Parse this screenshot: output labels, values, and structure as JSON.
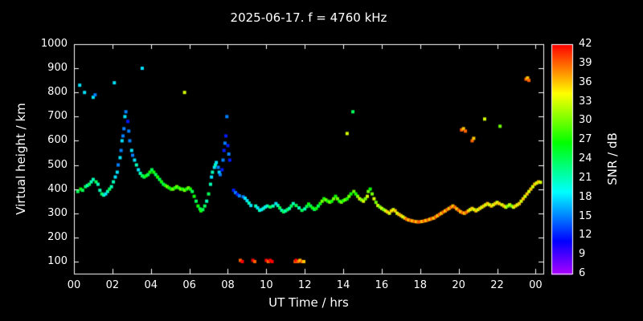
{
  "chart_data": {
    "type": "scatter",
    "title": "2025-06-17. f = 4760 kHz",
    "xlabel": "UT Time / hrs",
    "ylabel": "Virtual height / km",
    "colorbar_label": "SNR / dB",
    "xlim": [
      0,
      24.4
    ],
    "ylim": [
      50,
      1000
    ],
    "x_ticks": [
      0,
      2,
      4,
      6,
      8,
      10,
      12,
      14,
      16,
      18,
      20,
      22,
      24
    ],
    "x_tick_labels": [
      "00",
      "02",
      "04",
      "06",
      "08",
      "10",
      "12",
      "14",
      "16",
      "18",
      "20",
      "22",
      "00"
    ],
    "y_ticks": [
      100,
      200,
      300,
      400,
      500,
      600,
      700,
      800,
      900,
      1000
    ],
    "colorbar": {
      "min": 6,
      "max": 42,
      "ticks": [
        6,
        9,
        12,
        15,
        18,
        21,
        24,
        27,
        30,
        33,
        36,
        39,
        42
      ]
    },
    "background": "#000000",
    "frame_color": "#ffffff",
    "grid": false,
    "marker": "square",
    "points": [
      [
        0.2,
        390,
        24
      ],
      [
        0.3,
        830,
        18
      ],
      [
        0.35,
        400,
        27
      ],
      [
        0.45,
        395,
        24
      ],
      [
        0.55,
        800,
        18
      ],
      [
        0.6,
        410,
        24
      ],
      [
        0.7,
        415,
        21
      ],
      [
        0.8,
        420,
        24
      ],
      [
        0.9,
        430,
        21
      ],
      [
        1.0,
        780,
        18
      ],
      [
        1.0,
        440,
        21
      ],
      [
        1.1,
        790,
        15
      ],
      [
        1.15,
        430,
        24
      ],
      [
        1.25,
        420,
        21
      ],
      [
        1.35,
        395,
        21
      ],
      [
        1.45,
        380,
        24
      ],
      [
        1.55,
        375,
        21
      ],
      [
        1.65,
        380,
        18
      ],
      [
        1.75,
        390,
        21
      ],
      [
        1.85,
        400,
        24
      ],
      [
        1.95,
        410,
        21
      ],
      [
        2.05,
        430,
        21
      ],
      [
        2.1,
        840,
        18
      ],
      [
        2.15,
        450,
        18
      ],
      [
        2.25,
        470,
        18
      ],
      [
        2.3,
        500,
        15
      ],
      [
        2.4,
        530,
        18
      ],
      [
        2.45,
        560,
        15
      ],
      [
        2.5,
        600,
        18
      ],
      [
        2.55,
        620,
        15
      ],
      [
        2.6,
        650,
        15
      ],
      [
        2.65,
        700,
        18
      ],
      [
        2.7,
        720,
        15
      ],
      [
        2.8,
        680,
        12
      ],
      [
        2.85,
        640,
        15
      ],
      [
        2.9,
        600,
        15
      ],
      [
        3.0,
        560,
        18
      ],
      [
        3.05,
        540,
        15
      ],
      [
        3.15,
        520,
        18
      ],
      [
        3.25,
        500,
        21
      ],
      [
        3.35,
        480,
        18
      ],
      [
        3.45,
        465,
        21
      ],
      [
        3.55,
        900,
        18
      ],
      [
        3.55,
        455,
        24
      ],
      [
        3.65,
        450,
        24
      ],
      [
        3.75,
        455,
        27
      ],
      [
        3.85,
        460,
        24
      ],
      [
        3.95,
        470,
        27
      ],
      [
        4.05,
        480,
        24
      ],
      [
        4.15,
        470,
        27
      ],
      [
        4.25,
        460,
        24
      ],
      [
        4.35,
        450,
        27
      ],
      [
        4.45,
        440,
        24
      ],
      [
        4.55,
        430,
        27
      ],
      [
        4.65,
        420,
        24
      ],
      [
        4.75,
        415,
        27
      ],
      [
        4.85,
        410,
        30
      ],
      [
        4.95,
        405,
        27
      ],
      [
        5.05,
        400,
        27
      ],
      [
        5.15,
        400,
        30
      ],
      [
        5.25,
        405,
        27
      ],
      [
        5.35,
        410,
        30
      ],
      [
        5.45,
        405,
        27
      ],
      [
        5.55,
        400,
        30
      ],
      [
        5.65,
        400,
        27
      ],
      [
        5.75,
        800,
        33
      ],
      [
        5.75,
        395,
        30
      ],
      [
        5.85,
        400,
        27
      ],
      [
        5.95,
        405,
        30
      ],
      [
        6.05,
        400,
        27
      ],
      [
        6.15,
        390,
        24
      ],
      [
        6.25,
        370,
        27
      ],
      [
        6.35,
        350,
        24
      ],
      [
        6.45,
        330,
        27
      ],
      [
        6.55,
        318,
        24
      ],
      [
        6.6,
        310,
        27
      ],
      [
        6.7,
        315,
        24
      ],
      [
        6.8,
        330,
        24
      ],
      [
        6.9,
        350,
        21
      ],
      [
        7.0,
        380,
        24
      ],
      [
        7.1,
        420,
        21
      ],
      [
        7.15,
        450,
        18
      ],
      [
        7.2,
        470,
        21
      ],
      [
        7.3,
        490,
        18
      ],
      [
        7.35,
        500,
        21
      ],
      [
        7.4,
        510,
        18
      ],
      [
        7.5,
        490,
        15
      ],
      [
        7.55,
        470,
        18
      ],
      [
        7.6,
        460,
        15
      ],
      [
        7.7,
        480,
        12
      ],
      [
        7.75,
        520,
        15
      ],
      [
        7.8,
        560,
        12
      ],
      [
        7.85,
        590,
        15
      ],
      [
        7.9,
        620,
        12
      ],
      [
        7.95,
        700,
        15
      ],
      [
        8.0,
        580,
        12
      ],
      [
        8.05,
        545,
        15
      ],
      [
        8.1,
        520,
        12
      ],
      [
        8.3,
        395,
        12
      ],
      [
        8.4,
        385,
        15
      ],
      [
        8.5,
        378,
        12
      ],
      [
        8.6,
        372,
        15
      ],
      [
        8.65,
        105,
        39
      ],
      [
        8.75,
        100,
        42
      ],
      [
        8.8,
        368,
        15
      ],
      [
        8.9,
        362,
        18
      ],
      [
        9.0,
        352,
        18
      ],
      [
        9.1,
        342,
        21
      ],
      [
        9.2,
        332,
        18
      ],
      [
        9.3,
        105,
        42
      ],
      [
        9.4,
        100,
        39
      ],
      [
        9.45,
        330,
        21
      ],
      [
        9.55,
        322,
        18
      ],
      [
        9.65,
        312,
        21
      ],
      [
        9.75,
        315,
        18
      ],
      [
        9.85,
        320,
        21
      ],
      [
        9.95,
        326,
        18
      ],
      [
        10.0,
        105,
        42
      ],
      [
        10.1,
        100,
        39
      ],
      [
        10.2,
        105,
        42
      ],
      [
        10.3,
        100,
        42
      ],
      [
        10.05,
        330,
        21
      ],
      [
        10.2,
        326,
        24
      ],
      [
        10.35,
        330,
        21
      ],
      [
        10.5,
        340,
        18
      ],
      [
        10.6,
        332,
        21
      ],
      [
        10.7,
        322,
        24
      ],
      [
        10.8,
        312,
        21
      ],
      [
        10.9,
        306,
        24
      ],
      [
        11.0,
        310,
        21
      ],
      [
        11.1,
        315,
        24
      ],
      [
        11.2,
        320,
        21
      ],
      [
        11.3,
        330,
        24
      ],
      [
        11.4,
        340,
        21
      ],
      [
        11.5,
        100,
        39
      ],
      [
        11.55,
        105,
        42
      ],
      [
        11.65,
        100,
        39
      ],
      [
        11.75,
        105,
        36
      ],
      [
        11.85,
        100,
        39
      ],
      [
        11.95,
        100,
        36
      ],
      [
        11.55,
        332,
        24
      ],
      [
        11.7,
        322,
        21
      ],
      [
        11.85,
        312,
        24
      ],
      [
        12.0,
        318,
        21
      ],
      [
        12.1,
        328,
        24
      ],
      [
        12.2,
        338,
        27
      ],
      [
        12.3,
        330,
        24
      ],
      [
        12.4,
        322,
        27
      ],
      [
        12.5,
        316,
        24
      ],
      [
        12.6,
        320,
        27
      ],
      [
        12.7,
        330,
        24
      ],
      [
        12.8,
        340,
        27
      ],
      [
        12.9,
        350,
        30
      ],
      [
        13.0,
        360,
        27
      ],
      [
        13.1,
        355,
        30
      ],
      [
        13.2,
        350,
        27
      ],
      [
        13.3,
        346,
        30
      ],
      [
        13.4,
        350,
        27
      ],
      [
        13.5,
        360,
        30
      ],
      [
        13.6,
        370,
        27
      ],
      [
        13.7,
        360,
        30
      ],
      [
        13.8,
        350,
        27
      ],
      [
        13.9,
        346,
        30
      ],
      [
        14.0,
        352,
        27
      ],
      [
        14.1,
        356,
        30
      ],
      [
        14.2,
        630,
        33
      ],
      [
        14.2,
        360,
        27
      ],
      [
        14.3,
        370,
        30
      ],
      [
        14.4,
        380,
        27
      ],
      [
        14.5,
        720,
        24
      ],
      [
        14.55,
        390,
        30
      ],
      [
        14.65,
        380,
        27
      ],
      [
        14.75,
        370,
        30
      ],
      [
        14.85,
        360,
        33
      ],
      [
        14.95,
        355,
        30
      ],
      [
        15.05,
        350,
        33
      ],
      [
        15.15,
        360,
        30
      ],
      [
        15.25,
        370,
        33
      ],
      [
        15.3,
        390,
        30
      ],
      [
        15.4,
        400,
        27
      ],
      [
        15.5,
        380,
        30
      ],
      [
        15.6,
        360,
        33
      ],
      [
        15.7,
        345,
        30
      ],
      [
        15.8,
        332,
        33
      ],
      [
        15.9,
        326,
        30
      ],
      [
        16.0,
        320,
        33
      ],
      [
        16.1,
        315,
        30
      ],
      [
        16.2,
        310,
        33
      ],
      [
        16.3,
        305,
        36
      ],
      [
        16.4,
        300,
        33
      ],
      [
        16.5,
        310,
        36
      ],
      [
        16.6,
        315,
        33
      ],
      [
        16.7,
        310,
        36
      ],
      [
        16.8,
        300,
        33
      ],
      [
        16.9,
        295,
        36
      ],
      [
        17.0,
        290,
        36
      ],
      [
        17.1,
        285,
        33
      ],
      [
        17.2,
        280,
        36
      ],
      [
        17.3,
        275,
        39
      ],
      [
        17.4,
        272,
        36
      ],
      [
        17.5,
        270,
        39
      ],
      [
        17.6,
        268,
        36
      ],
      [
        17.7,
        266,
        39
      ],
      [
        17.8,
        265,
        36
      ],
      [
        17.9,
        264,
        39
      ],
      [
        18.0,
        265,
        39
      ],
      [
        18.1,
        266,
        36
      ],
      [
        18.2,
        268,
        39
      ],
      [
        18.3,
        270,
        36
      ],
      [
        18.4,
        272,
        39
      ],
      [
        18.5,
        275,
        36
      ],
      [
        18.6,
        278,
        39
      ],
      [
        18.7,
        280,
        36
      ],
      [
        18.8,
        285,
        39
      ],
      [
        18.9,
        290,
        36
      ],
      [
        19.0,
        295,
        39
      ],
      [
        19.1,
        300,
        36
      ],
      [
        19.2,
        305,
        39
      ],
      [
        19.3,
        310,
        36
      ],
      [
        19.4,
        315,
        39
      ],
      [
        19.5,
        320,
        36
      ],
      [
        19.6,
        325,
        39
      ],
      [
        19.7,
        330,
        36
      ],
      [
        19.8,
        325,
        39
      ],
      [
        19.9,
        318,
        36
      ],
      [
        20.0,
        312,
        39
      ],
      [
        20.1,
        306,
        36
      ],
      [
        20.15,
        645,
        39
      ],
      [
        20.25,
        650,
        36
      ],
      [
        20.35,
        640,
        39
      ],
      [
        20.2,
        302,
        39
      ],
      [
        20.3,
        300,
        36
      ],
      [
        20.4,
        304,
        39
      ],
      [
        20.5,
        310,
        36
      ],
      [
        20.6,
        315,
        33
      ],
      [
        20.7,
        600,
        39
      ],
      [
        20.78,
        610,
        36
      ],
      [
        20.7,
        320,
        36
      ],
      [
        20.8,
        315,
        33
      ],
      [
        20.9,
        310,
        36
      ],
      [
        21.0,
        315,
        33
      ],
      [
        21.1,
        320,
        36
      ],
      [
        21.2,
        325,
        33
      ],
      [
        21.3,
        330,
        36
      ],
      [
        21.35,
        690,
        33
      ],
      [
        21.4,
        335,
        33
      ],
      [
        21.5,
        340,
        36
      ],
      [
        21.6,
        335,
        33
      ],
      [
        21.7,
        330,
        36
      ],
      [
        21.8,
        335,
        33
      ],
      [
        21.9,
        340,
        36
      ],
      [
        22.0,
        345,
        33
      ],
      [
        22.1,
        340,
        36
      ],
      [
        22.15,
        660,
        30
      ],
      [
        22.25,
        335,
        33
      ],
      [
        22.35,
        330,
        36
      ],
      [
        22.45,
        325,
        33
      ],
      [
        22.55,
        330,
        30
      ],
      [
        22.65,
        335,
        33
      ],
      [
        22.75,
        330,
        30
      ],
      [
        22.85,
        325,
        33
      ],
      [
        22.95,
        330,
        36
      ],
      [
        23.05,
        335,
        33
      ],
      [
        23.15,
        340,
        36
      ],
      [
        23.25,
        350,
        33
      ],
      [
        23.35,
        360,
        36
      ],
      [
        23.45,
        370,
        33
      ],
      [
        23.5,
        855,
        39
      ],
      [
        23.58,
        860,
        36
      ],
      [
        23.65,
        850,
        39
      ],
      [
        23.55,
        380,
        36
      ],
      [
        23.65,
        390,
        33
      ],
      [
        23.75,
        400,
        36
      ],
      [
        23.85,
        410,
        33
      ],
      [
        23.95,
        420,
        36
      ],
      [
        24.05,
        425,
        33
      ],
      [
        24.15,
        430,
        36
      ],
      [
        24.25,
        428,
        33
      ]
    ]
  }
}
